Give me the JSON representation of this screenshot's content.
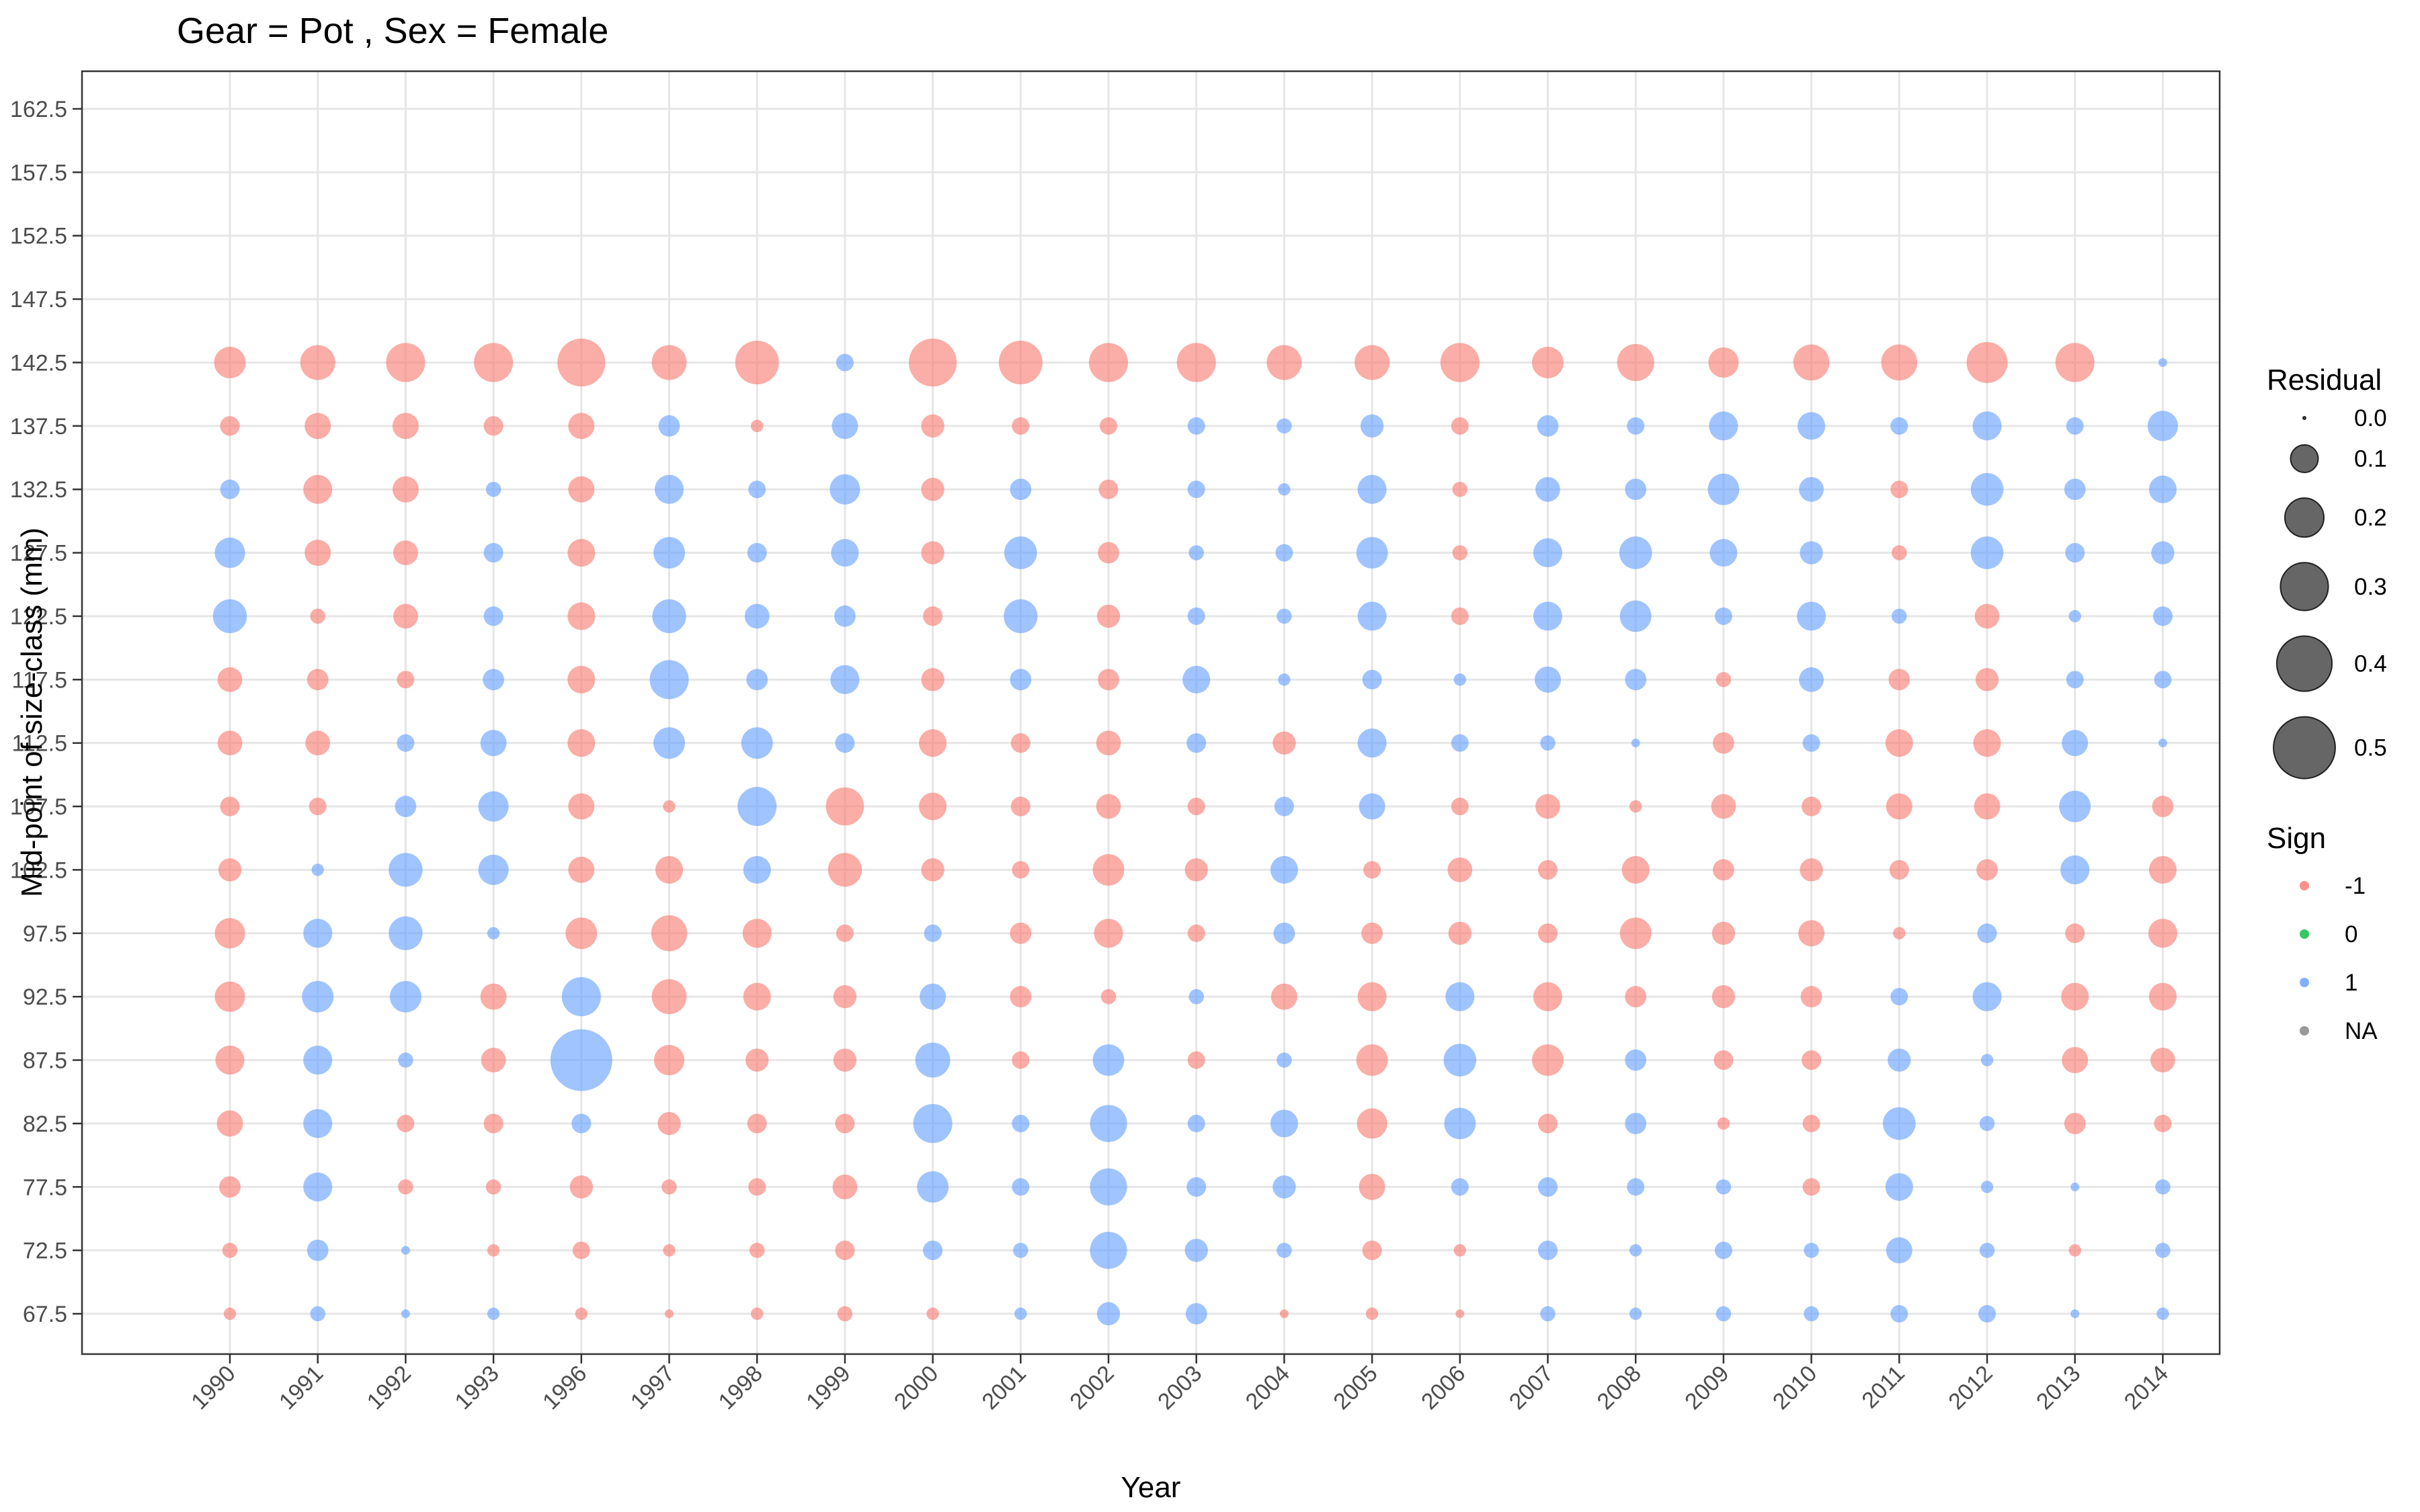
{
  "chart_data": {
    "type": "scatter",
    "title": "Gear = Pot , Sex = Female",
    "xlabel": "Year",
    "ylabel": "Mid-point of size-class (mm)",
    "grid": true,
    "legend_position": "right",
    "categories": [
      "1990",
      "1991",
      "1992",
      "1993",
      "1996",
      "1997",
      "1998",
      "1999",
      "2000",
      "2001",
      "2002",
      "2003",
      "2004",
      "2005",
      "2006",
      "2007",
      "2008",
      "2009",
      "2010",
      "2011",
      "2012",
      "2013",
      "2014"
    ],
    "y_ticks": [
      "67.5",
      "72.5",
      "77.5",
      "82.5",
      "87.5",
      "92.5",
      "97.5",
      "102.5",
      "107.5",
      "112.5",
      "117.5",
      "122.5",
      "127.5",
      "132.5",
      "137.5",
      "142.5",
      "147.5",
      "152.5",
      "157.5",
      "162.5"
    ],
    "ylim": [
      67.5,
      162.5
    ],
    "size_legend": {
      "title": "Residual",
      "values": [
        0.0,
        0.1,
        0.2,
        0.3,
        0.4,
        0.5
      ],
      "labels": [
        "0.0",
        "0.1",
        "0.2",
        "0.3",
        "0.4",
        "0.5"
      ]
    },
    "sign_legend": {
      "title": "Sign",
      "labels": [
        "-1",
        "0",
        "1",
        "NA"
      ],
      "colors": [
        "#f8766d",
        "#00ba38",
        "#619cff",
        "#808080"
      ]
    },
    "size_classes": [
      67.5,
      72.5,
      77.5,
      82.5,
      87.5,
      92.5,
      97.5,
      102.5,
      107.5,
      112.5,
      117.5,
      122.5,
      127.5,
      132.5,
      137.5,
      142.5
    ],
    "residuals": [
      [
        -0.02,
        -0.03,
        -0.06,
        -0.09,
        -0.11,
        -0.12,
        -0.12,
        -0.07,
        -0.05,
        -0.08,
        -0.08,
        0.15,
        0.12,
        0.05,
        -0.05,
        -0.13
      ],
      [
        0.03,
        0.06,
        0.11,
        0.11,
        0.11,
        0.13,
        0.11,
        0.02,
        -0.04,
        -0.08,
        -0.06,
        -0.03,
        -0.09,
        -0.11,
        -0.09,
        -0.16
      ],
      [
        0.01,
        0.01,
        -0.03,
        -0.04,
        0.03,
        0.13,
        0.15,
        0.15,
        0.06,
        0.04,
        -0.04,
        -0.08,
        -0.08,
        -0.09,
        -0.09,
        -0.2
      ],
      [
        0.02,
        -0.02,
        -0.03,
        -0.05,
        -0.08,
        -0.09,
        0.02,
        0.12,
        0.12,
        0.09,
        0.06,
        0.05,
        0.05,
        0.03,
        -0.05,
        -0.2
      ],
      [
        -0.02,
        -0.04,
        -0.07,
        0.05,
        0.5,
        0.2,
        -0.13,
        -0.09,
        -0.09,
        -0.1,
        -0.1,
        -0.1,
        -0.1,
        -0.09,
        -0.09,
        -0.3
      ],
      [
        -0.01,
        -0.02,
        -0.03,
        -0.07,
        -0.12,
        -0.16,
        -0.17,
        -0.1,
        -0.02,
        0.13,
        0.2,
        0.15,
        0.13,
        0.11,
        0.06,
        -0.16
      ],
      [
        -0.02,
        -0.03,
        -0.04,
        -0.05,
        -0.07,
        -0.1,
        -0.11,
        0.1,
        0.2,
        0.13,
        0.06,
        0.08,
        0.05,
        0.04,
        -0.02,
        -0.25
      ],
      [
        -0.03,
        -0.05,
        -0.08,
        -0.05,
        -0.07,
        -0.07,
        -0.04,
        -0.15,
        -0.19,
        0.05,
        0.11,
        0.06,
        0.1,
        0.12,
        0.09,
        0.04
      ],
      [
        -0.02,
        0.05,
        0.13,
        0.2,
        0.16,
        0.09,
        0.04,
        -0.07,
        -0.1,
        -0.1,
        -0.07,
        -0.05,
        -0.07,
        -0.07,
        -0.07,
        -0.3
      ],
      [
        0.02,
        0.03,
        0.04,
        0.04,
        -0.04,
        -0.06,
        -0.06,
        -0.04,
        -0.05,
        -0.05,
        0.06,
        0.15,
        0.14,
        0.06,
        -0.04,
        -0.25
      ],
      [
        0.07,
        0.18,
        0.18,
        0.18,
        0.13,
        -0.03,
        -0.11,
        -0.13,
        -0.08,
        -0.08,
        -0.06,
        -0.07,
        -0.06,
        -0.05,
        -0.04,
        -0.2
      ],
      [
        0.06,
        0.07,
        0.05,
        0.04,
        -0.04,
        0.03,
        -0.04,
        -0.07,
        -0.04,
        0.05,
        0.1,
        0.04,
        0.03,
        0.04,
        0.04,
        -0.2
      ],
      [
        -0.01,
        0.03,
        0.07,
        0.1,
        0.03,
        -0.09,
        0.06,
        0.1,
        0.05,
        -0.07,
        0.02,
        0.03,
        0.04,
        0.02,
        0.03,
        -0.16
      ],
      [
        -0.02,
        -0.05,
        -0.09,
        -0.12,
        -0.13,
        -0.11,
        -0.06,
        -0.04,
        0.09,
        0.11,
        0.05,
        0.11,
        0.13,
        0.11,
        0.07,
        -0.16
      ],
      [
        -0.01,
        -0.02,
        0.04,
        0.13,
        0.14,
        0.11,
        -0.07,
        -0.08,
        -0.04,
        0.04,
        0.02,
        -0.04,
        -0.03,
        -0.03,
        -0.04,
        -0.2
      ],
      [
        0.03,
        0.05,
        0.05,
        -0.05,
        -0.13,
        -0.11,
        -0.05,
        -0.05,
        -0.08,
        0.03,
        0.09,
        0.11,
        0.11,
        0.08,
        0.06,
        -0.13
      ],
      [
        0.02,
        0.02,
        0.04,
        0.06,
        0.06,
        -0.06,
        -0.13,
        -0.1,
        -0.02,
        0.01,
        0.06,
        0.13,
        0.14,
        0.06,
        0.04,
        -0.18
      ],
      [
        0.03,
        0.04,
        0.03,
        -0.02,
        -0.05,
        -0.07,
        -0.07,
        -0.06,
        -0.08,
        -0.06,
        -0.03,
        0.04,
        0.1,
        0.13,
        0.11,
        -0.12
      ],
      [
        0.03,
        0.03,
        -0.04,
        -0.04,
        -0.05,
        -0.06,
        -0.09,
        -0.07,
        -0.05,
        0.04,
        0.08,
        0.11,
        0.07,
        0.08,
        0.1,
        -0.17
      ],
      [
        0.04,
        0.09,
        0.1,
        0.14,
        0.07,
        0.04,
        -0.02,
        -0.05,
        -0.09,
        -0.1,
        -0.06,
        0.03,
        -0.03,
        -0.04,
        0.04,
        -0.17
      ],
      [
        0.04,
        0.03,
        0.02,
        0.03,
        0.02,
        0.11,
        0.05,
        -0.06,
        -0.09,
        -0.1,
        -0.07,
        -0.08,
        0.14,
        0.14,
        0.11,
        -0.22
      ],
      [
        0.01,
        -0.02,
        0.01,
        -0.06,
        -0.09,
        -0.1,
        -0.05,
        0.11,
        0.13,
        0.09,
        0.04,
        0.02,
        0.05,
        0.06,
        0.04,
        -0.2
      ],
      [
        0.02,
        0.03,
        0.03,
        -0.04,
        -0.08,
        -0.1,
        -0.11,
        -0.1,
        -0.06,
        0.01,
        0.04,
        0.05,
        0.07,
        0.1,
        0.12,
        0.01
      ]
    ]
  }
}
